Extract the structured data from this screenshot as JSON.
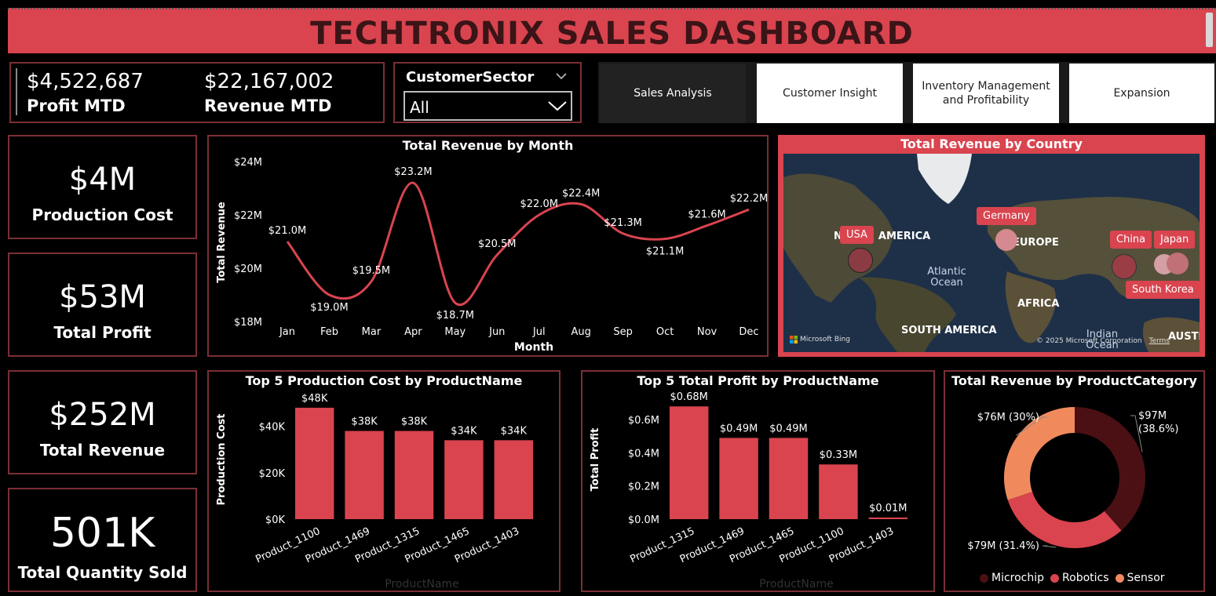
{
  "header": {
    "title": "TECHTRONIX SALES DASHBOARD"
  },
  "kpis": {
    "profit_mtd": {
      "value": "$4,522,687",
      "label": "Profit MTD"
    },
    "revenue_mtd": {
      "value": "$22,167,002",
      "label": "Revenue MTD"
    }
  },
  "filter": {
    "label": "CustomerSector",
    "selected": "All"
  },
  "nav": {
    "buttons": [
      "Sales Analysis",
      "Customer Insight",
      "Inventory Management and Profitability",
      "Expansion"
    ],
    "active": "Sales Analysis"
  },
  "cards": [
    {
      "value": "$4M",
      "label": "Production Cost"
    },
    {
      "value": "$53M",
      "label": "Total Profit"
    },
    {
      "value": "$252M",
      "label": "Total Revenue"
    },
    {
      "value": "501K",
      "label": "Total Quantity Sold"
    }
  ],
  "map": {
    "title": "Total Revenue by Country",
    "countries": [
      "USA",
      "Germany",
      "China",
      "Japan",
      "South Korea"
    ],
    "regions": [
      "AMERICA",
      "EUROPE",
      "AFRICA",
      "SOUTH AMERICA",
      "AUSTR"
    ],
    "region_prefix": "N",
    "oceans": [
      "Atlantic Ocean",
      "Indian Ocean"
    ],
    "attribution": "Microsoft Bing",
    "copyright": "© 2025 Microsoft Corporation",
    "terms": "Terms",
    "colors": {
      "bubble": "#b34852",
      "pill": "#d9444f"
    }
  },
  "chart_data": [
    {
      "type": "line",
      "title": "Total Revenue by Month",
      "xlabel": "Month",
      "ylabel": "Total Revenue",
      "categories": [
        "Jan",
        "Feb",
        "Mar",
        "Apr",
        "May",
        "Jun",
        "Jul",
        "Aug",
        "Sep",
        "Oct",
        "Nov",
        "Dec"
      ],
      "values": [
        21.0,
        19.0,
        19.5,
        23.2,
        18.7,
        20.5,
        22.0,
        22.4,
        21.3,
        21.1,
        21.6,
        22.2
      ],
      "labels": [
        "$21.0M",
        "$19.0M",
        "$19.5M",
        "$23.2M",
        "$18.7M",
        "$20.5M",
        "$22.0M",
        "$22.4M",
        "$21.3M",
        "$21.1M",
        "$21.6M",
        "$22.2M"
      ],
      "yticks": [
        18,
        20,
        22,
        24
      ],
      "ytick_labels": [
        "$18M",
        "$20M",
        "$22M",
        "$24M"
      ],
      "ylim": [
        18,
        24
      ],
      "color": "#d9444f"
    },
    {
      "type": "bar",
      "title": "Top 5 Production Cost by ProductName",
      "xlabel": "ProductName",
      "ylabel": "Production Cost",
      "categories": [
        "Product_1100",
        "Product_1469",
        "Product_1315",
        "Product_1465",
        "Product_1403"
      ],
      "values": [
        48,
        38,
        38,
        34,
        34
      ],
      "labels": [
        "$48K",
        "$38K",
        "$38K",
        "$34K",
        "$34K"
      ],
      "yticks": [
        0,
        20,
        40
      ],
      "ytick_labels": [
        "$0K",
        "$20K",
        "$40K"
      ],
      "ylim": [
        0,
        50
      ],
      "color": "#d9444f"
    },
    {
      "type": "bar",
      "title": "Top 5 Total Profit by ProductName",
      "xlabel": "ProductName",
      "ylabel": "Total Profit",
      "categories": [
        "Product_1315",
        "Product_1469",
        "Product_1465",
        "Product_1100",
        "Product_1403"
      ],
      "values": [
        0.68,
        0.49,
        0.49,
        0.33,
        0.01
      ],
      "labels": [
        "$0.68M",
        "$0.49M",
        "$0.49M",
        "$0.33M",
        "$0.01M"
      ],
      "yticks": [
        0,
        0.2,
        0.4,
        0.6
      ],
      "ytick_labels": [
        "$0.0M",
        "$0.2M",
        "$0.4M",
        "$0.6M"
      ],
      "ylim": [
        0,
        0.7
      ],
      "color": "#d9444f"
    },
    {
      "type": "pie",
      "title": "Total Revenue by ProductCategory",
      "categories": [
        "Microchip",
        "Robotics",
        "Sensor"
      ],
      "values": [
        97,
        79,
        76
      ],
      "percents": [
        38.6,
        31.4,
        30
      ],
      "labels": [
        "$97M",
        "$79M (31.4%)",
        "$76M (30%)"
      ],
      "sublabels": [
        "(38.6%)",
        "",
        ""
      ],
      "colors": [
        "#4a1014",
        "#d9444f",
        "#f08a5d"
      ]
    }
  ]
}
